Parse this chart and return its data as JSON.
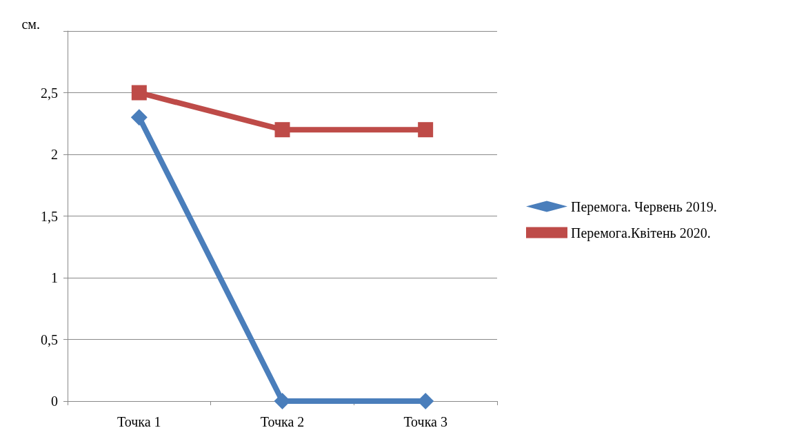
{
  "chart_data": {
    "type": "line",
    "ylabel": "см.",
    "categories": [
      "Точка 1",
      "Точка 2",
      "Точка 3"
    ],
    "series": [
      {
        "name": "Перемога. Червень 2019.",
        "color": "#4a7ebb",
        "marker": "diamond",
        "values": [
          2.3,
          0,
          0
        ]
      },
      {
        "name": "Перемога.Квітень 2020.",
        "color": "#be4b48",
        "marker": "square",
        "values": [
          2.5,
          2.2,
          2.2
        ]
      }
    ],
    "ylim": [
      0,
      3
    ],
    "yticks": [
      0,
      {
        "value": 0.5,
        "label": "0,5"
      },
      1,
      {
        "value": 1.5,
        "label": "1,5"
      },
      2,
      {
        "value": 2.5,
        "label": "2,5"
      },
      {
        "value": 3,
        "label": null
      }
    ],
    "grid": "y",
    "legend": "right",
    "line_style": "solid"
  }
}
